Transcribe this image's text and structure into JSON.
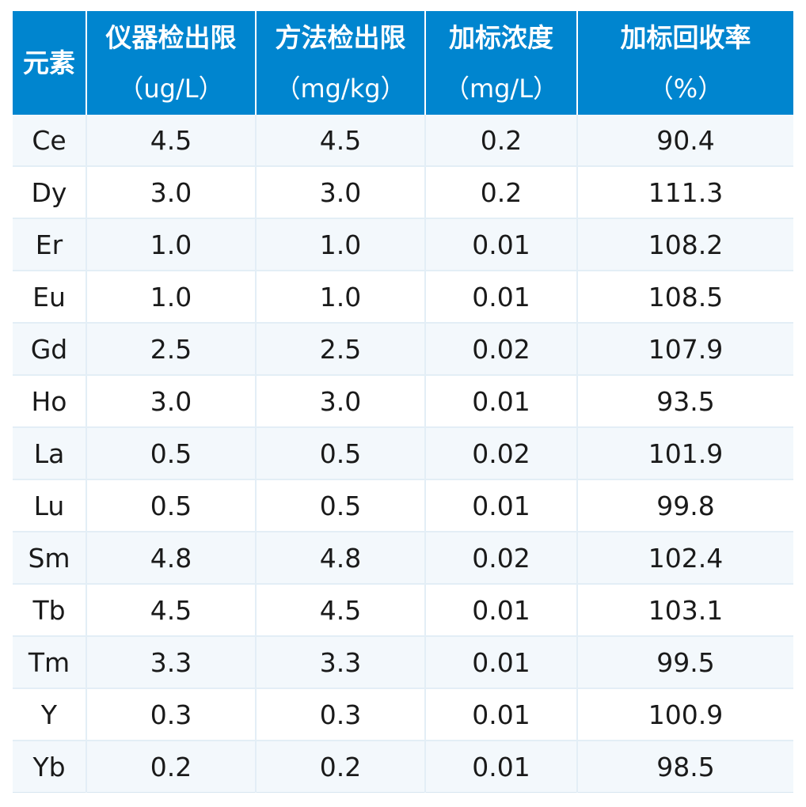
{
  "table": {
    "headers": [
      {
        "title": "元素",
        "unit": ""
      },
      {
        "title": "仪器检出限",
        "unit": "（ug/L）"
      },
      {
        "title": "方法检出限",
        "unit": "（mg/kg）"
      },
      {
        "title": "加标浓度",
        "unit": "（mg/L）"
      },
      {
        "title": "加标回收率",
        "unit": "（%）"
      }
    ],
    "rows": [
      [
        "Ce",
        "4.5",
        "4.5",
        "0.2",
        "90.4"
      ],
      [
        "Dy",
        "3.0",
        "3.0",
        "0.2",
        "111.3"
      ],
      [
        "Er",
        "1.0",
        "1.0",
        "0.01",
        "108.2"
      ],
      [
        "Eu",
        "1.0",
        "1.0",
        "0.01",
        "108.5"
      ],
      [
        "Gd",
        "2.5",
        "2.5",
        "0.02",
        "107.9"
      ],
      [
        "Ho",
        "3.0",
        "3.0",
        "0.01",
        "93.5"
      ],
      [
        "La",
        "0.5",
        "0.5",
        "0.02",
        "101.9"
      ],
      [
        "Lu",
        "0.5",
        "0.5",
        "0.01",
        "99.8"
      ],
      [
        "Sm",
        "4.8",
        "4.8",
        "0.02",
        "102.4"
      ],
      [
        "Tb",
        "4.5",
        "4.5",
        "0.01",
        "103.1"
      ],
      [
        "Tm",
        "3.3",
        "3.3",
        "0.01",
        "99.5"
      ],
      [
        "Y",
        "0.3",
        "0.3",
        "0.01",
        "100.9"
      ],
      [
        "Yb",
        "0.2",
        "0.2",
        "0.01",
        "98.5"
      ]
    ]
  },
  "colors": {
    "header_bg": "#0085cf",
    "header_text": "#ffffff",
    "row_alt_bg": "#f3f8fc"
  }
}
